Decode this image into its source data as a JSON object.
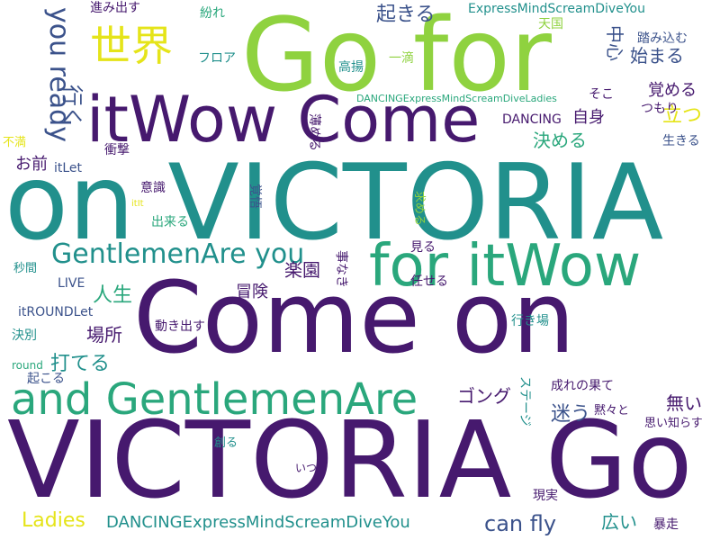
{
  "palette": {
    "dark_purple": "#46196e",
    "teal": "#21908c",
    "sea_green": "#2aa77c",
    "lime": "#8fd23f",
    "yellow": "#e5e419",
    "blue_violet": "#3b528b",
    "indigo": "#482878",
    "background": "#ffffff"
  },
  "words": [
    {
      "text": "VICTORIA Go",
      "color": "#46196e",
      "vertical": false
    },
    {
      "text": "on VICTORIA",
      "color": "#21908c",
      "vertical": false
    },
    {
      "text": "Come on",
      "color": "#46196e",
      "vertical": false
    },
    {
      "text": "Go for",
      "color": "#8fd23f",
      "vertical": false
    },
    {
      "text": "itWow Come",
      "color": "#46196e",
      "vertical": false
    },
    {
      "text": "for itWow",
      "color": "#2aa77c",
      "vertical": false
    },
    {
      "text": "and GentlemenAre",
      "color": "#2aa77c",
      "vertical": false
    },
    {
      "text": "GentlemenAre you",
      "color": "#21908c",
      "vertical": false
    },
    {
      "text": "世界",
      "color": "#e5e419",
      "vertical": false
    },
    {
      "text": "you ready",
      "color": "#3b528b",
      "vertical": true
    },
    {
      "text": "行く",
      "color": "#3b528b",
      "vertical": true
    },
    {
      "text": "起きる",
      "color": "#3b528b",
      "vertical": false
    },
    {
      "text": "ExpressMindScreamDiveYou",
      "color": "#21908c",
      "vertical": false
    },
    {
      "text": "立つ",
      "color": "#e5e419",
      "vertical": false
    },
    {
      "text": "中心",
      "color": "#3b528b",
      "vertical": true
    },
    {
      "text": "始まる",
      "color": "#3b528b",
      "vertical": false
    },
    {
      "text": "覚める",
      "color": "#46196e",
      "vertical": false
    },
    {
      "text": "自身",
      "color": "#46196e",
      "vertical": false
    },
    {
      "text": "決める",
      "color": "#2aa77c",
      "vertical": false
    },
    {
      "text": "DANCING",
      "color": "#46196e",
      "vertical": false
    },
    {
      "text": "DANCINGExpressMindScreamDiveLadies",
      "color": "#2aa77c",
      "vertical": false
    },
    {
      "text": "DANCINGExpressMindScreamDiveYou",
      "color": "#21908c",
      "vertical": false
    },
    {
      "text": "Ladies",
      "color": "#e5e419",
      "vertical": false
    },
    {
      "text": "can fly",
      "color": "#3b528b",
      "vertical": false
    },
    {
      "text": "楽園",
      "color": "#46196e",
      "vertical": false
    },
    {
      "text": "冒険",
      "color": "#46196e",
      "vertical": false
    },
    {
      "text": "人生",
      "color": "#2aa77c",
      "vertical": false
    },
    {
      "text": "場所",
      "color": "#46196e",
      "vertical": false
    },
    {
      "text": "打てる",
      "color": "#21908c",
      "vertical": false
    },
    {
      "text": "迷う",
      "color": "#3b528b",
      "vertical": false
    },
    {
      "text": "無い",
      "color": "#46196e",
      "vertical": false
    },
    {
      "text": "ゴング",
      "color": "#46196e",
      "vertical": false
    },
    {
      "text": "広い",
      "color": "#21908c",
      "vertical": false
    },
    {
      "text": "進み出す",
      "color": "#46196e",
      "vertical": false
    },
    {
      "text": "紛れ",
      "color": "#2aa77c",
      "vertical": false
    },
    {
      "text": "天国",
      "color": "#8fd23f",
      "vertical": false
    },
    {
      "text": "踏み込む",
      "color": "#3b528b",
      "vertical": false
    },
    {
      "text": "フロア",
      "color": "#21908c",
      "vertical": false
    },
    {
      "text": "一滴",
      "color": "#8fd23f",
      "vertical": false
    },
    {
      "text": "高揚",
      "color": "#21908c",
      "vertical": false
    },
    {
      "text": "そこ",
      "color": "#46196e",
      "vertical": false
    },
    {
      "text": "つもり",
      "color": "#46196e",
      "vertical": false
    },
    {
      "text": "薄める",
      "color": "#46196e",
      "vertical": true
    },
    {
      "text": "不満",
      "color": "#e5e419",
      "vertical": false
    },
    {
      "text": "衝撃",
      "color": "#46196e",
      "vertical": false
    },
    {
      "text": "お前",
      "color": "#46196e",
      "vertical": false
    },
    {
      "text": "itLet",
      "color": "#3b528b",
      "vertical": false
    },
    {
      "text": "生きる",
      "color": "#3b528b",
      "vertical": false
    },
    {
      "text": "意識",
      "color": "#46196e",
      "vertical": false
    },
    {
      "text": "覚悟",
      "color": "#3b528b",
      "vertical": true
    },
    {
      "text": "求める",
      "color": "#8fd23f",
      "vertical": true
    },
    {
      "text": "itIt",
      "color": "#e5e419",
      "vertical": false
    },
    {
      "text": "出来る",
      "color": "#2aa77c",
      "vertical": false
    },
    {
      "text": "見る",
      "color": "#46196e",
      "vertical": false
    },
    {
      "text": "事なき",
      "color": "#46196e",
      "vertical": true
    },
    {
      "text": "秒間",
      "color": "#21908c",
      "vertical": false
    },
    {
      "text": "LIVE",
      "color": "#3b528b",
      "vertical": false
    },
    {
      "text": "任せる",
      "color": "#46196e",
      "vertical": false
    },
    {
      "text": "itROUNDLet",
      "color": "#3b528b",
      "vertical": false
    },
    {
      "text": "動き出す",
      "color": "#46196e",
      "vertical": false
    },
    {
      "text": "行き場",
      "color": "#21908c",
      "vertical": false
    },
    {
      "text": "決別",
      "color": "#21908c",
      "vertical": false
    },
    {
      "text": "round",
      "color": "#2aa77c",
      "vertical": false
    },
    {
      "text": "起こる",
      "color": "#3b528b",
      "vertical": false
    },
    {
      "text": "成れの果て",
      "color": "#46196e",
      "vertical": false
    },
    {
      "text": "ステージ",
      "color": "#21908c",
      "vertical": true
    },
    {
      "text": "黙々と",
      "color": "#46196e",
      "vertical": false
    },
    {
      "text": "思い知らす",
      "color": "#46196e",
      "vertical": false
    },
    {
      "text": "創る",
      "color": "#21908c",
      "vertical": false
    },
    {
      "text": "いつ",
      "color": "#46196e",
      "vertical": false
    },
    {
      "text": "現実",
      "color": "#46196e",
      "vertical": false
    },
    {
      "text": "暴走",
      "color": "#46196e",
      "vertical": false
    }
  ]
}
